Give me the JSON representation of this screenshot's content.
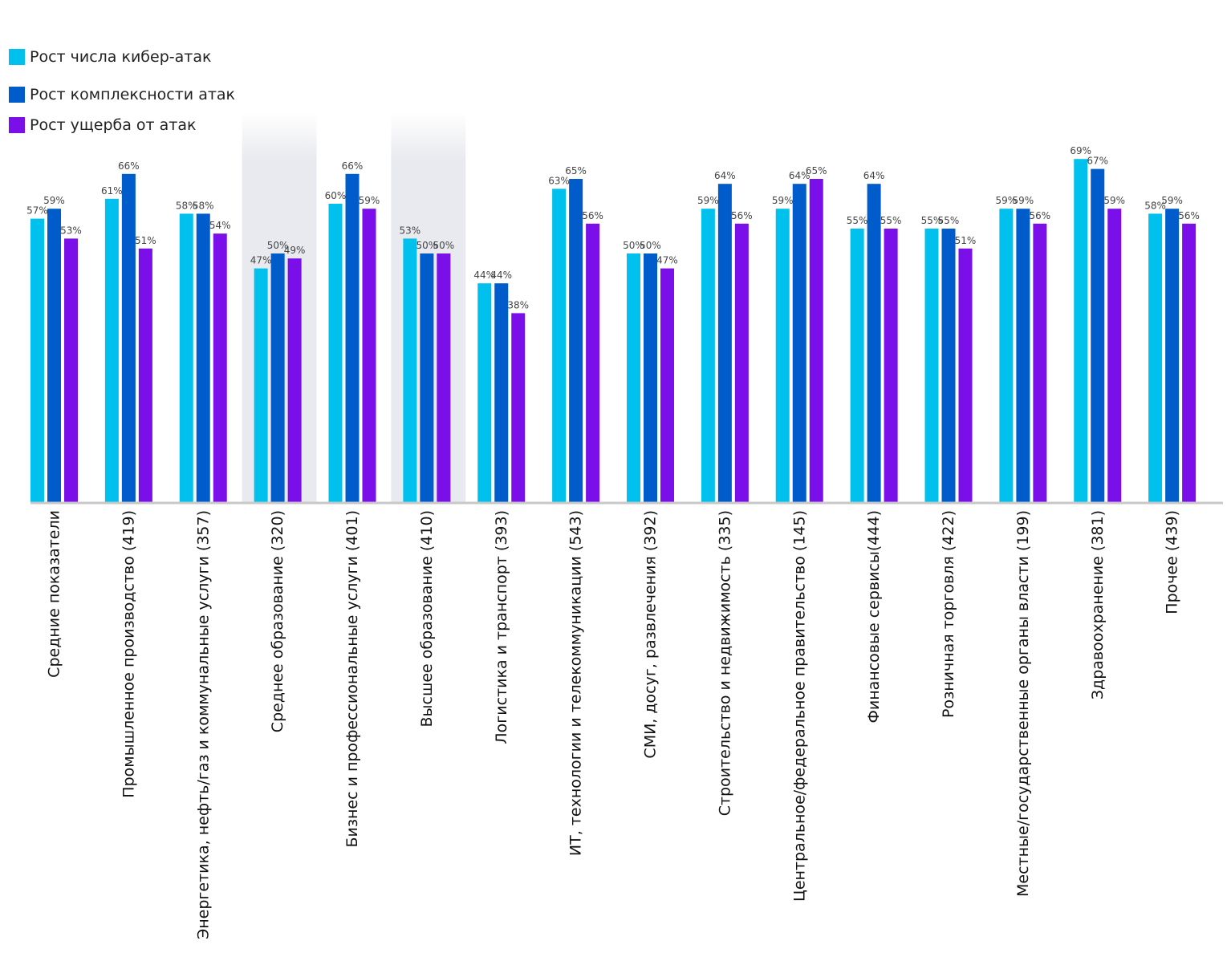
{
  "chart_data": {
    "type": "bar",
    "categories": [
      "Средние показатели",
      "Промышленное производство (419)",
      "Энергетика, нефть/газ и коммунальные услуги (357)",
      "Среднее образование (320)",
      "Бизнес и профессиональные услуги (401)",
      "Высшее образование (410)",
      "Логистика и транспорт  (393)",
      "ИТ, технологии и телекоммуникации (543)",
      "СМИ, досуг, развлечения (392)",
      "Строительство и недвижимость (335)",
      "Центральное/федеральное правительство (145)",
      "Финансовые сервисы(444)",
      "Розничная торговля (422)",
      "Местные/государственные органы власти (199)",
      "Здравоохранение (381)",
      "Прочее (439)"
    ],
    "series": [
      {
        "name": "Рост числа кибер-атак",
        "color": "#00C1EE",
        "values": [
          57,
          61,
          58,
          47,
          60,
          53,
          44,
          63,
          50,
          59,
          59,
          55,
          55,
          59,
          69,
          58
        ],
        "labels": [
          "57%",
          "61%",
          "58%",
          "47%",
          "60%",
          "53%",
          "44%",
          "63%",
          "50%",
          "59%",
          "59%",
          "55%",
          "55%",
          "59%",
          "69%",
          "58%"
        ]
      },
      {
        "name": "Рост комплексности атак",
        "color": "#005CCB",
        "values": [
          59,
          66,
          58,
          50,
          66,
          50,
          44,
          65,
          50,
          64,
          64,
          64,
          55,
          59,
          67,
          59
        ],
        "labels": [
          "59%",
          "66%",
          "58%",
          "50%",
          "66%",
          "50%",
          "44%",
          "65%",
          "50%",
          "64%",
          "64%",
          "64%",
          "55%",
          "59%",
          "67%",
          "59%"
        ]
      },
      {
        "name": "Рост ущерба от атак",
        "color": "#7A0FEA",
        "values": [
          53,
          51,
          54,
          49,
          59,
          50,
          38,
          56,
          47,
          56,
          65,
          55,
          51,
          56,
          59,
          56
        ],
        "labels": [
          "53%",
          "51%",
          "54%",
          "49%",
          "59%",
          "50%",
          "38%",
          "56%",
          "47%",
          "56%",
          "65%",
          "55%",
          "51%",
          "56%",
          "59%",
          "56%"
        ]
      }
    ],
    "highlighted_categories": [
      "Среднее образование (320)",
      "Высшее образование (410)"
    ],
    "ylim": [
      0,
      69
    ],
    "grid": false,
    "legend_position": "top-left"
  }
}
